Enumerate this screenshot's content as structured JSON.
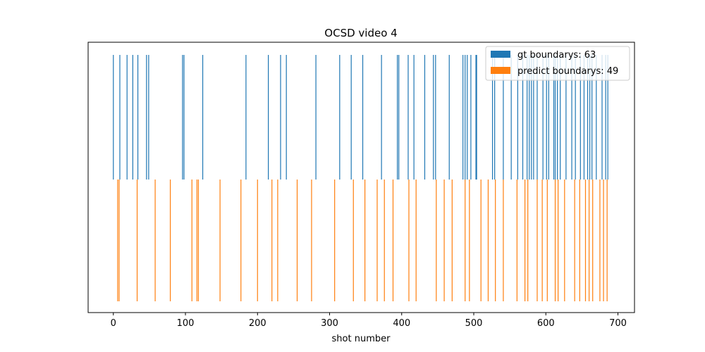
{
  "chart_data": {
    "type": "bar",
    "title": "OCSD video 4",
    "xlabel": "shot number",
    "ylabel": "",
    "xlim": [
      -35,
      723
    ],
    "grid": false,
    "legend_position": "top-right",
    "x_ticks": [
      0,
      100,
      200,
      300,
      400,
      500,
      600,
      700
    ],
    "series": [
      {
        "name": "gt boundarys: 63",
        "color": "#1f77b4",
        "x": [
          0,
          9,
          19,
          27,
          34,
          46,
          49,
          96,
          98,
          124,
          184,
          215,
          232,
          240,
          281,
          314,
          346,
          372,
          394,
          396,
          409,
          417,
          444,
          447,
          466,
          485,
          488,
          491,
          496,
          503,
          526,
          529,
          541,
          552,
          568,
          574,
          577,
          583,
          588,
          601,
          604,
          611,
          613,
          616,
          628,
          636,
          641,
          648,
          658,
          661,
          664,
          683,
          686,
          504,
          580,
          620,
          653,
          670,
          678,
          596,
          561,
          432,
          330
        ]
      },
      {
        "name": "predict boundarys: 49",
        "color": "#ff7f0e",
        "x": [
          6,
          8,
          33,
          58,
          79,
          109,
          116,
          118,
          148,
          177,
          200,
          220,
          228,
          255,
          275,
          307,
          333,
          349,
          366,
          376,
          388,
          410,
          448,
          459,
          488,
          494,
          530,
          541,
          571,
          575,
          588,
          602,
          613,
          617,
          626,
          647,
          660,
          665,
          680,
          685,
          510,
          560,
          595,
          640,
          655,
          675,
          520,
          470,
          420
        ]
      }
    ]
  }
}
